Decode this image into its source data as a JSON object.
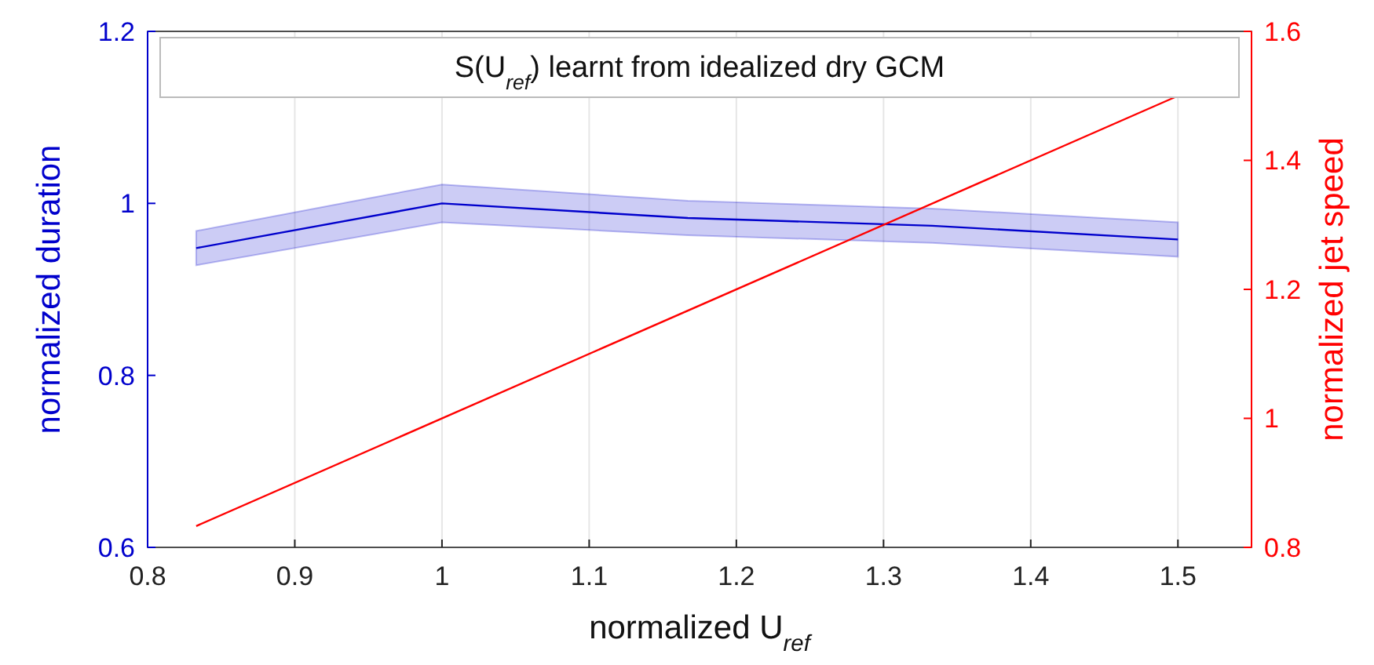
{
  "chart_data": {
    "type": "line",
    "title": "S(U$_{ref}$) learnt from idealized dry GCM",
    "xlabel": "normalized U$_{ref}$",
    "ylabel": "normalized duration",
    "y2label": "normalized jet speed",
    "xlim": [
      0.8,
      1.55
    ],
    "xticks": [
      0.8,
      0.9,
      1,
      1.1,
      1.2,
      1.3,
      1.4,
      1.5
    ],
    "ylim": [
      0.6,
      1.2
    ],
    "yticks": [
      0.6,
      0.8,
      1,
      1.2
    ],
    "y2lim": [
      0.8,
      1.6
    ],
    "y2ticks": [
      0.8,
      1,
      1.2,
      1.4,
      1.6
    ],
    "grid": "x",
    "line_style": "solid",
    "marker": "none",
    "series": [
      {
        "color": "#0000cc",
        "x": [
          0.833,
          1.0,
          1.167,
          1.333,
          1.5
        ],
        "values": [
          0.948,
          1.0,
          0.983,
          0.974,
          0.958
        ],
        "lower": [
          0.928,
          0.978,
          0.963,
          0.954,
          0.938
        ],
        "upper": [
          0.968,
          1.022,
          1.003,
          0.994,
          0.978
        ]
      },
      {
        "color": "#ff0000",
        "axis": "y2",
        "x": [
          0.833,
          1.5
        ],
        "values": [
          0.833,
          1.5
        ]
      }
    ]
  }
}
